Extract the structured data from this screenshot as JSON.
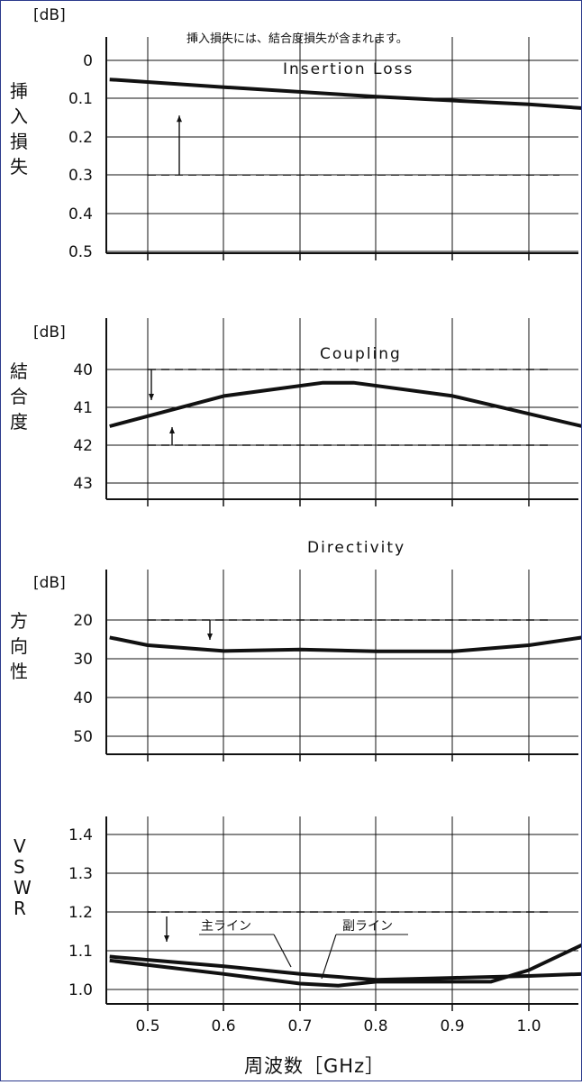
{
  "x_axis": {
    "ticks": [
      "0.5",
      "0.6",
      "0.7",
      "0.8",
      "0.9",
      "1.0"
    ],
    "title": "周波数［GHz］"
  },
  "colors": {
    "line": "#111111",
    "grid": "#111111",
    "border": "#2b3a8c"
  },
  "chart_data": [
    {
      "type": "line",
      "title": "Insertion Loss",
      "note": "挿入損失には、結合度損失が含まれます。",
      "unit": "[dB]",
      "ylabel": "挿入損失",
      "yticks": [
        "0",
        "0.1",
        "0.2",
        "0.3",
        "0.4",
        "0.5"
      ],
      "ylim": [
        0.5,
        0
      ],
      "xlim": [
        0.45,
        1.07
      ],
      "limits": [
        {
          "value": 0.3,
          "direction": "up"
        }
      ],
      "series": [
        {
          "x": [
            0.45,
            0.6,
            0.8,
            1.0,
            1.07
          ],
          "y": [
            0.05,
            0.07,
            0.095,
            0.115,
            0.125
          ]
        }
      ]
    },
    {
      "type": "line",
      "title": "Coupling",
      "unit": "[dB]",
      "ylabel": "結合度",
      "yticks": [
        "40",
        "41",
        "42",
        "43"
      ],
      "ylim": [
        43.3,
        39.2
      ],
      "xlim": [
        0.45,
        1.07
      ],
      "limits": [
        {
          "value": 40,
          "direction": "down"
        },
        {
          "value": 42,
          "direction": "up"
        }
      ],
      "series": [
        {
          "x": [
            0.45,
            0.6,
            0.73,
            0.77,
            0.9,
            1.07
          ],
          "y": [
            41.5,
            40.7,
            40.35,
            40.35,
            40.7,
            41.5
          ]
        }
      ]
    },
    {
      "type": "line",
      "title": "Directivity",
      "unit": "[dB]",
      "ylabel": "方向性",
      "yticks": [
        "20",
        "30",
        "40",
        "50"
      ],
      "ylim": [
        53,
        10
      ],
      "xlim": [
        0.45,
        1.07
      ],
      "limits": [
        {
          "value": 20,
          "direction": "down"
        }
      ],
      "series": [
        {
          "x": [
            0.45,
            0.5,
            0.6,
            0.7,
            0.8,
            0.9,
            1.0,
            1.07
          ],
          "y": [
            24.5,
            26.5,
            28,
            27.6,
            28.1,
            28.1,
            26.5,
            24.5
          ]
        }
      ]
    },
    {
      "type": "line",
      "unit": "",
      "ylabel": "VSWR",
      "yticks": [
        "1.4",
        "1.3",
        "1.2",
        "1.1",
        "1.0"
      ],
      "ylim": [
        0.96,
        1.45
      ],
      "xlim": [
        0.45,
        1.07
      ],
      "limits": [
        {
          "value": 1.2,
          "direction": "down"
        }
      ],
      "series": [
        {
          "name": "主ライン",
          "x": [
            0.45,
            0.6,
            0.7,
            0.8,
            0.9,
            1.0,
            1.07
          ],
          "y": [
            1.085,
            1.06,
            1.04,
            1.025,
            1.03,
            1.035,
            1.04
          ]
        },
        {
          "name": "副ライン",
          "x": [
            0.45,
            0.6,
            0.7,
            0.75,
            0.8,
            0.9,
            0.95,
            1.0,
            1.07
          ],
          "y": [
            1.075,
            1.04,
            1.015,
            1.01,
            1.02,
            1.02,
            1.02,
            1.05,
            1.115
          ]
        }
      ]
    }
  ]
}
